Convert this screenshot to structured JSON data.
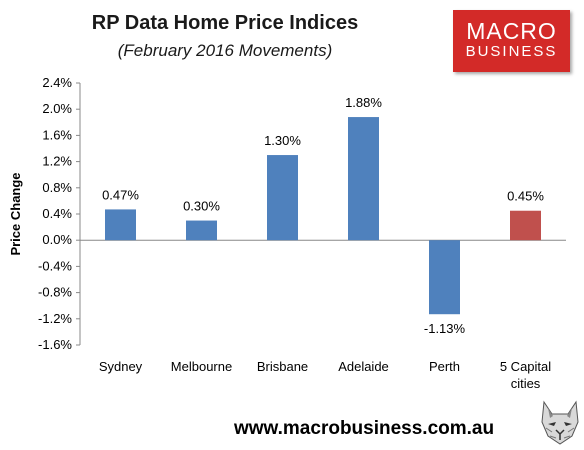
{
  "header": {
    "title": "RP Data Home Price Indices",
    "subtitle": "(February 2016 Movements)"
  },
  "logo": {
    "line1": "MACRO",
    "line2": "BUSINESS",
    "color": "#d32a28"
  },
  "footer": {
    "url": "www.macrobusiness.com.au",
    "icon": "wolf-head-icon"
  },
  "chart_data": {
    "type": "bar",
    "title": "RP Data Home Price Indices",
    "subtitle": "(February 2016 Movements)",
    "xlabel": "",
    "ylabel": "Price Change",
    "categories": [
      "Sydney",
      "Melbourne",
      "Brisbane",
      "Adelaide",
      "Perth",
      "5 Capital cities"
    ],
    "category_lines": [
      [
        "Sydney"
      ],
      [
        "Melbourne"
      ],
      [
        "Brisbane"
      ],
      [
        "Adelaide"
      ],
      [
        "Perth"
      ],
      [
        "5 Capital",
        "cities"
      ]
    ],
    "values": [
      0.47,
      0.3,
      1.3,
      1.88,
      -1.13,
      0.45
    ],
    "data_labels": [
      "0.47%",
      "0.30%",
      "1.30%",
      "1.88%",
      "-1.13%",
      "0.45%"
    ],
    "bar_colors": [
      "#4f81bd",
      "#4f81bd",
      "#4f81bd",
      "#4f81bd",
      "#4f81bd",
      "#c0504d"
    ],
    "ylim": [
      -1.6,
      2.4
    ],
    "yticks": [
      2.4,
      2.0,
      1.6,
      1.2,
      0.8,
      0.4,
      0.0,
      -0.4,
      -0.8,
      -1.2,
      -1.6
    ],
    "ytick_labels": [
      "2.4%",
      "2.0%",
      "1.6%",
      "1.2%",
      "0.8%",
      "0.4%",
      "0.0%",
      "-0.4%",
      "-0.8%",
      "-1.2%",
      "-1.6%"
    ],
    "grid": false,
    "legend": "none"
  }
}
